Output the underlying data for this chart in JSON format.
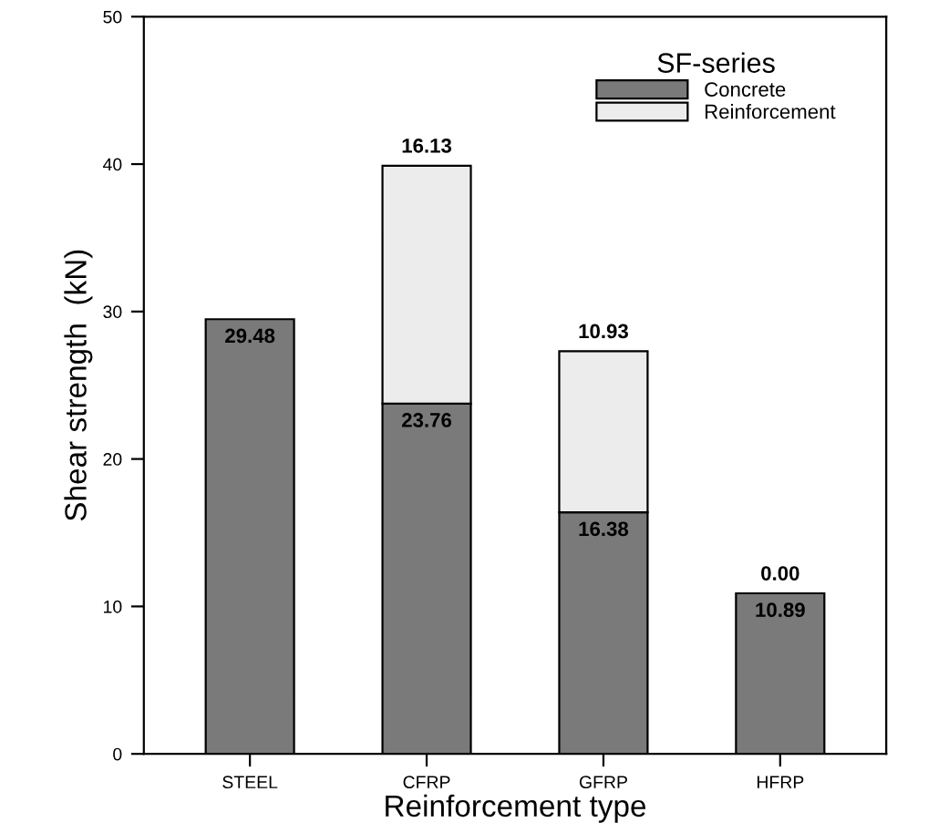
{
  "chart_data": {
    "type": "bar",
    "stacked": true,
    "xlabel": "Reinforcement type",
    "ylabel": "Shear strength  (kN)",
    "legend_title": "SF-series",
    "legend": "top right",
    "grid": false,
    "categories": [
      "STEEL",
      "CFRP",
      "GFRP",
      "HFRP"
    ],
    "series": [
      {
        "name": "Concrete",
        "color": "#7a7a7a",
        "values": [
          29.48,
          23.76,
          16.38,
          10.89
        ],
        "value_labels": [
          "29.48",
          "23.76",
          "16.38",
          "10.89"
        ]
      },
      {
        "name": "Reinforcement",
        "color": "#ececec",
        "values": [
          null,
          16.13,
          10.93,
          0.0
        ],
        "value_labels": [
          null,
          "16.13",
          "10.93",
          "0.00"
        ]
      }
    ],
    "ylim": [
      0,
      50
    ],
    "yticks": [
      0,
      10,
      20,
      30,
      40,
      50
    ]
  }
}
